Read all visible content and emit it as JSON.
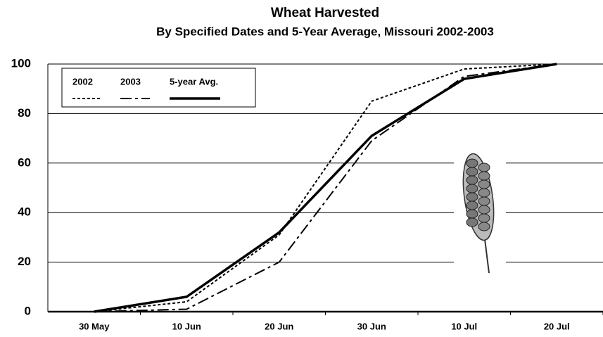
{
  "chart_data": {
    "type": "line",
    "title": "Wheat Harvested",
    "subtitle": "By Specified Dates and 5-Year Average, Missouri 2002-2003",
    "categories": [
      "30 May",
      "10 Jun",
      "20 Jun",
      "30 Jun",
      "10 Jul",
      "20 Jul"
    ],
    "series": [
      {
        "name": "2002",
        "color": "#000000",
        "dash": "dotted",
        "values": [
          0,
          4,
          31,
          85,
          98,
          100
        ]
      },
      {
        "name": "2003",
        "color": "#000000",
        "dash": "dashed",
        "values": [
          0,
          1,
          20,
          69,
          95,
          100
        ]
      },
      {
        "name": "5-year Avg.",
        "color": "#000000",
        "dash": "solid",
        "values": [
          0,
          6,
          32,
          71,
          94,
          100
        ]
      }
    ],
    "ylim": [
      0,
      100
    ],
    "yticks": [
      0,
      20,
      40,
      60,
      80,
      100
    ],
    "grid": true,
    "legend": "top-left"
  }
}
